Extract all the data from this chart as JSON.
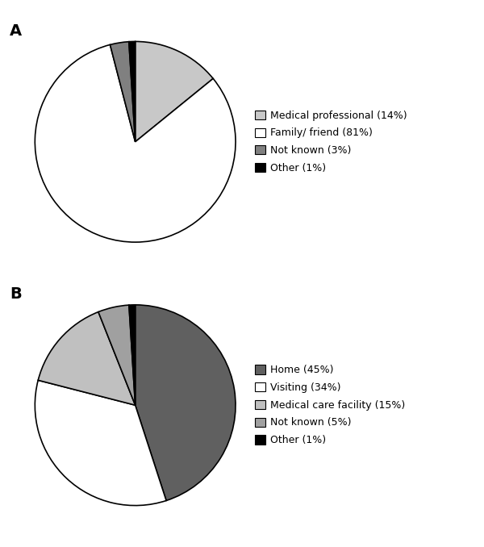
{
  "chart_A": {
    "label": "A",
    "slices": [
      14,
      81,
      3,
      1
    ],
    "labels": [
      "Medical professional (14%)",
      "Family/ friend (81%)",
      "Not known (3%)",
      "Other (1%)"
    ],
    "colors": [
      "#c8c8c8",
      "#ffffff",
      "#808080",
      "#000000"
    ],
    "startangle": 90,
    "counterclock": false
  },
  "chart_B": {
    "label": "B",
    "slices": [
      45,
      34,
      15,
      5,
      1
    ],
    "labels": [
      "Home (45%)",
      "Visiting (34%)",
      "Medical care facility (15%)",
      "Not known (5%)",
      "Other (1%)"
    ],
    "colors": [
      "#606060",
      "#ffffff",
      "#c0c0c0",
      "#a0a0a0",
      "#000000"
    ],
    "startangle": 90,
    "counterclock": false
  },
  "background_color": "#ffffff",
  "edge_color": "#000000",
  "linewidth": 1.2,
  "legend_fontsize": 9,
  "label_fontsize": 14
}
